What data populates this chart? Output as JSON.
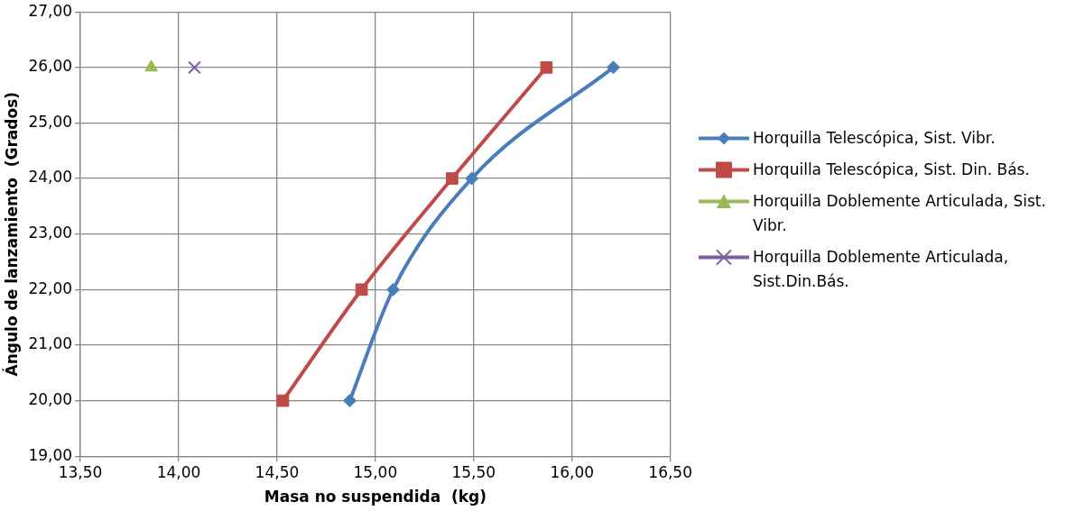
{
  "chart_data": {
    "type": "line",
    "xlabel": "Masa no suspendida  (kg)",
    "ylabel": "Ángulo de lanzamiento  (Grados)",
    "xlim": [
      13.5,
      16.5
    ],
    "xticks": [
      {
        "value": 13.5,
        "label": "13,50"
      },
      {
        "value": 14,
        "label": "14,00"
      },
      {
        "value": 14.5,
        "label": "14,50"
      },
      {
        "value": 15,
        "label": "15,00"
      },
      {
        "value": 15.5,
        "label": "15,50"
      },
      {
        "value": 16,
        "label": "16,00"
      },
      {
        "value": 16.5,
        "label": "16,50"
      }
    ],
    "ylim": [
      19,
      27
    ],
    "yticks": [
      {
        "value": 19,
        "label": "19,00"
      },
      {
        "value": 20,
        "label": "20,00"
      },
      {
        "value": 21,
        "label": "21,00"
      },
      {
        "value": 22,
        "label": "22,00"
      },
      {
        "value": 23,
        "label": "23,00"
      },
      {
        "value": 24,
        "label": "24,00"
      },
      {
        "value": 25,
        "label": "25,00"
      },
      {
        "value": 26,
        "label": "26,00"
      },
      {
        "value": 27,
        "label": "27,00"
      }
    ],
    "grid": true,
    "legend": "right",
    "series": [
      {
        "name": "Horquilla Telescópica, Sist. Vibr.",
        "color": "#4a7ebb",
        "marker": "diamond",
        "x": [
          14.87,
          15.09,
          15.49,
          16.21
        ],
        "values": [
          20,
          22,
          24,
          26
        ]
      },
      {
        "name": "Horquilla Telescópica, Sist. Din. Bás.",
        "color": "#be4b48",
        "marker": "square",
        "x": [
          14.53,
          14.93,
          15.39,
          15.87
        ],
        "values": [
          20,
          22,
          24,
          26
        ]
      },
      {
        "name": "Horquilla Doblemente Articulada, Sist. Vibr.",
        "color": "#98b954",
        "marker": "triangle",
        "x": [
          13.86
        ],
        "values": [
          26
        ]
      },
      {
        "name": "Horquilla Doblemente Articulada, Sist.Din.Bás.",
        "color": "#7d60a0",
        "marker": "cross",
        "x": [
          14.08
        ],
        "values": [
          26
        ]
      }
    ]
  }
}
